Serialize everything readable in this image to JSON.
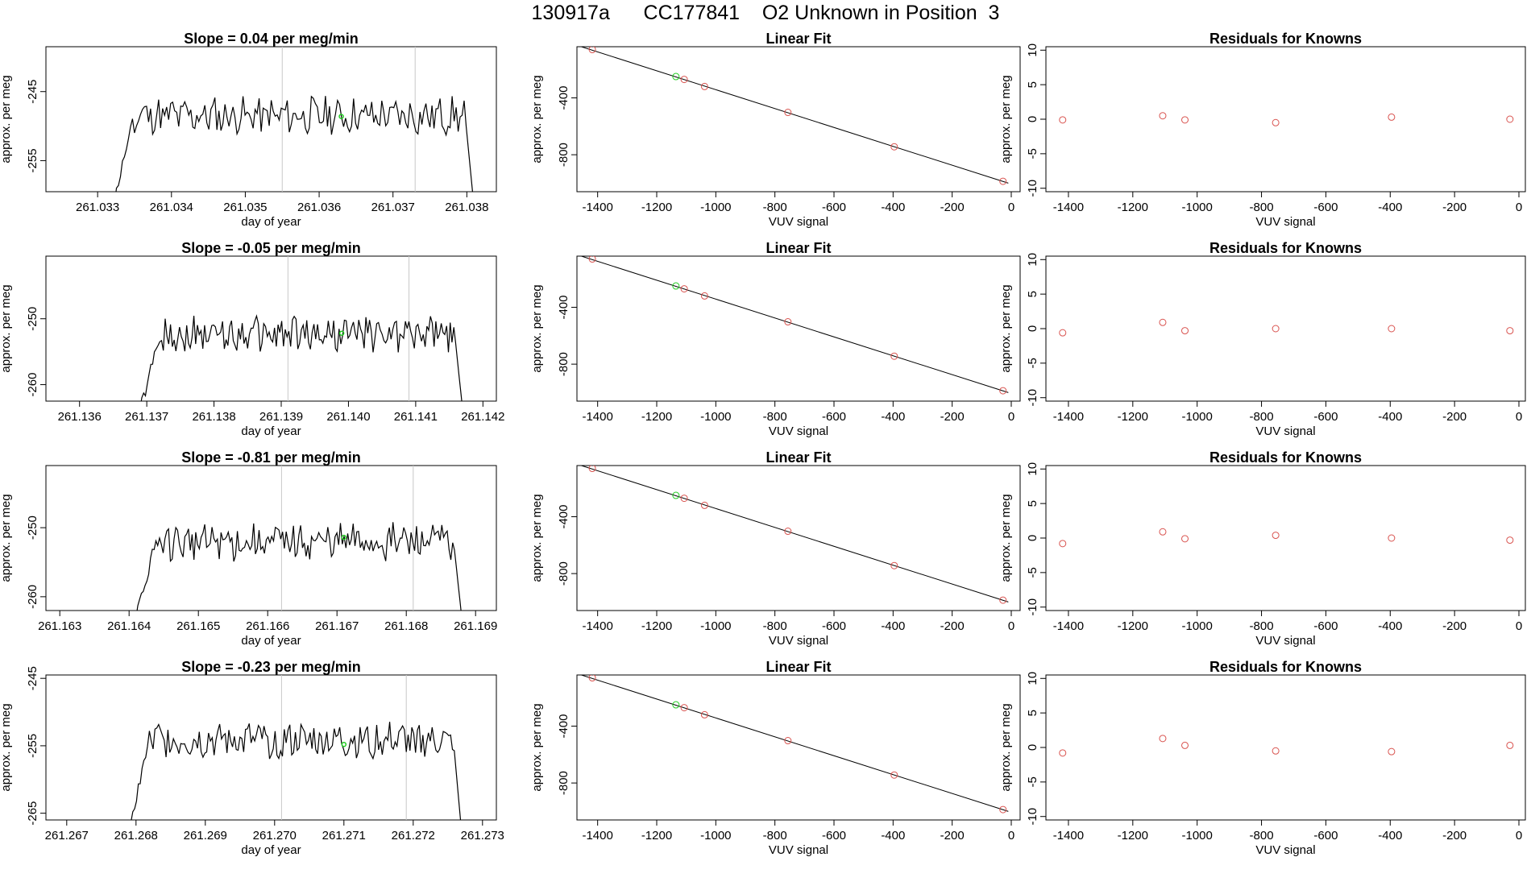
{
  "title": "130917a      CC177841    O2 Unknown in Position  3",
  "chart_data": [
    {
      "type": "line",
      "title": "Slope =  0.04  per meg/min",
      "xlabel": "day of year",
      "ylabel": "approx. per meg",
      "xlim": [
        261.0323,
        261.0384
      ],
      "ylim": [
        -259.5,
        -238.5
      ],
      "x_ticks": [
        "261.033",
        "261.034",
        "261.035",
        "261.036",
        "261.037",
        "261.038"
      ],
      "y_ticks": [
        "-245",
        "-255"
      ],
      "series": [
        {
          "x_start": 261.0332,
          "x_end": 261.0381,
          "mean": -248.5,
          "amplitude": 2.4,
          "rise_start": -262,
          "fall_end": -262
        }
      ],
      "vertical_lines": [
        261.0355,
        261.0373
      ],
      "highlight_point": [
        261.0363,
        -248.6
      ],
      "grid": false
    },
    {
      "type": "scatter",
      "title": "Linear Fit",
      "xlabel": "VUV signal",
      "ylabel": "approx. per meg",
      "xlim": [
        -1470,
        30
      ],
      "ylim": [
        -1060,
        -40
      ],
      "x_ticks": [
        "-1400",
        "-1200",
        "-1000",
        "-800",
        "-600",
        "-400",
        "-200",
        "0"
      ],
      "y_ticks": [
        "-400",
        "-800"
      ],
      "known_points": [
        [
          -1418,
          -60
        ],
        [
          -1107,
          -270
        ],
        [
          -1038,
          -320
        ],
        [
          -756,
          -502
        ],
        [
          -396,
          -744
        ],
        [
          -28,
          -987
        ]
      ],
      "unknown_point": [
        -1135,
        -250
      ],
      "fit_line": [
        [
          -1455,
          -40
        ],
        [
          -10,
          -1000
        ]
      ]
    },
    {
      "type": "scatter",
      "title": "Residuals for Knowns",
      "xlabel": "VUV signal",
      "ylabel": "approx. per meg",
      "xlim": [
        -1470,
        20
      ],
      "ylim": [
        -10.5,
        10.5
      ],
      "x_ticks": [
        "-1400",
        "-1200",
        "-1000",
        "-800",
        "-600",
        "-400",
        "-200",
        "0"
      ],
      "y_ticks": [
        "10",
        "5",
        "0",
        "-5",
        "-10"
      ],
      "points": [
        [
          -1418,
          -0.1
        ],
        [
          -1107,
          0.5
        ],
        [
          -1038,
          -0.1
        ],
        [
          -756,
          -0.5
        ],
        [
          -396,
          0.3
        ],
        [
          -28,
          0.0
        ]
      ]
    },
    {
      "type": "line",
      "title": "Slope =  -0.05  per meg/min",
      "xlabel": "day of year",
      "ylabel": "approx. per meg",
      "xlim": [
        261.1355,
        261.1422
      ],
      "ylim": [
        -262.5,
        -240.5
      ],
      "x_ticks": [
        "261.136",
        "261.137",
        "261.138",
        "261.139",
        "261.140",
        "261.141",
        "261.142"
      ],
      "y_ticks": [
        "-250",
        "-260"
      ],
      "series": [
        {
          "x_start": 261.1369,
          "x_end": 261.1417,
          "mean": -252.3,
          "amplitude": 2.4,
          "rise_start": -264,
          "fall_end": -264
        }
      ],
      "vertical_lines": [
        261.1391,
        261.1409
      ],
      "highlight_point": [
        261.1399,
        -252.2
      ],
      "grid": false
    },
    {
      "type": "scatter",
      "title": "Linear Fit",
      "xlabel": "VUV signal",
      "ylabel": "approx. per meg",
      "xlim": [
        -1470,
        30
      ],
      "ylim": [
        -1060,
        -40
      ],
      "x_ticks": [
        "-1400",
        "-1200",
        "-1000",
        "-800",
        "-600",
        "-400",
        "-200",
        "0"
      ],
      "y_ticks": [
        "-400",
        "-800"
      ],
      "known_points": [
        [
          -1418,
          -60
        ],
        [
          -1107,
          -270
        ],
        [
          -1038,
          -320
        ],
        [
          -756,
          -502
        ],
        [
          -396,
          -744
        ],
        [
          -28,
          -987
        ]
      ],
      "unknown_point": [
        -1135,
        -250
      ],
      "fit_line": [
        [
          -1455,
          -40
        ],
        [
          -10,
          -1000
        ]
      ]
    },
    {
      "type": "scatter",
      "title": "Residuals for Knowns",
      "xlabel": "VUV signal",
      "ylabel": "approx. per meg",
      "xlim": [
        -1470,
        20
      ],
      "ylim": [
        -10.5,
        10.5
      ],
      "x_ticks": [
        "-1400",
        "-1200",
        "-1000",
        "-800",
        "-600",
        "-400",
        "-200",
        "0"
      ],
      "y_ticks": [
        "10",
        "5",
        "0",
        "-5",
        "-10"
      ],
      "points": [
        [
          -1418,
          -0.6
        ],
        [
          -1107,
          0.9
        ],
        [
          -1038,
          -0.3
        ],
        [
          -756,
          0.0
        ],
        [
          -396,
          0.0
        ],
        [
          -28,
          -0.3
        ]
      ]
    },
    {
      "type": "line",
      "title": "Slope =  -0.81  per meg/min",
      "xlabel": "day of year",
      "ylabel": "approx. per meg",
      "xlim": [
        261.1628,
        261.1693
      ],
      "ylim": [
        -262.0,
        -241.0
      ],
      "x_ticks": [
        "261.163",
        "261.164",
        "261.165",
        "261.166",
        "261.167",
        "261.168",
        "261.169"
      ],
      "y_ticks": [
        "-250",
        "-260"
      ],
      "series": [
        {
          "x_start": 261.1641,
          "x_end": 261.1688,
          "mean": -252.0,
          "amplitude": 2.4,
          "rise_start": -263,
          "fall_end": -263
        }
      ],
      "vertical_lines": [
        261.1662,
        261.1681
      ],
      "highlight_point": [
        261.1671,
        -251.4
      ],
      "grid": false
    },
    {
      "type": "scatter",
      "title": "Linear Fit",
      "xlabel": "VUV signal",
      "ylabel": "approx. per meg",
      "xlim": [
        -1470,
        30
      ],
      "ylim": [
        -1060,
        -40
      ],
      "x_ticks": [
        "-1400",
        "-1200",
        "-1000",
        "-800",
        "-600",
        "-400",
        "-200",
        "0"
      ],
      "y_ticks": [
        "-400",
        "-800"
      ],
      "known_points": [
        [
          -1418,
          -60
        ],
        [
          -1107,
          -270
        ],
        [
          -1038,
          -320
        ],
        [
          -756,
          -502
        ],
        [
          -396,
          -744
        ],
        [
          -28,
          -987
        ]
      ],
      "unknown_point": [
        -1135,
        -250
      ],
      "fit_line": [
        [
          -1455,
          -40
        ],
        [
          -10,
          -1000
        ]
      ]
    },
    {
      "type": "scatter",
      "title": "Residuals for Knowns",
      "xlabel": "VUV signal",
      "ylabel": "approx. per meg",
      "xlim": [
        -1470,
        20
      ],
      "ylim": [
        -10.5,
        10.5
      ],
      "x_ticks": [
        "-1400",
        "-1200",
        "-1000",
        "-800",
        "-600",
        "-400",
        "-200",
        "0"
      ],
      "y_ticks": [
        "10",
        "5",
        "0",
        "-5",
        "-10"
      ],
      "points": [
        [
          -1418,
          -0.8
        ],
        [
          -1107,
          0.9
        ],
        [
          -1038,
          -0.1
        ],
        [
          -756,
          0.4
        ],
        [
          -396,
          0.0
        ],
        [
          -28,
          -0.3
        ]
      ]
    },
    {
      "type": "line",
      "title": "Slope =  -0.23  per meg/min",
      "xlabel": "day of year",
      "ylabel": "approx. per meg",
      "xlim": [
        261.2667,
        261.2732
      ],
      "ylim": [
        -266.0,
        -244.5
      ],
      "x_ticks": [
        "261.267",
        "261.268",
        "261.269",
        "261.270",
        "261.271",
        "261.272",
        "261.273"
      ],
      "y_ticks": [
        "-245",
        "-255",
        "-265"
      ],
      "series": [
        {
          "x_start": 261.2679,
          "x_end": 261.2727,
          "mean": -254.2,
          "amplitude": 2.4,
          "rise_start": -268,
          "fall_end": -268
        }
      ],
      "vertical_lines": [
        261.2701,
        261.2719
      ],
      "highlight_point": [
        261.271,
        -254.8
      ],
      "grid": false
    },
    {
      "type": "scatter",
      "title": "Linear Fit",
      "xlabel": "VUV signal",
      "ylabel": "approx. per meg",
      "xlim": [
        -1470,
        30
      ],
      "ylim": [
        -1060,
        -40
      ],
      "x_ticks": [
        "-1400",
        "-1200",
        "-1000",
        "-800",
        "-600",
        "-400",
        "-200",
        "0"
      ],
      "y_ticks": [
        "-400",
        "-800"
      ],
      "known_points": [
        [
          -1418,
          -60
        ],
        [
          -1107,
          -270
        ],
        [
          -1038,
          -320
        ],
        [
          -756,
          -502
        ],
        [
          -396,
          -744
        ],
        [
          -28,
          -987
        ]
      ],
      "unknown_point": [
        -1135,
        -250
      ],
      "fit_line": [
        [
          -1455,
          -40
        ],
        [
          -10,
          -1000
        ]
      ]
    },
    {
      "type": "scatter",
      "title": "Residuals for Knowns",
      "xlabel": "VUV signal",
      "ylabel": "approx. per meg",
      "xlim": [
        -1470,
        20
      ],
      "ylim": [
        -10.5,
        10.5
      ],
      "x_ticks": [
        "-1400",
        "-1200",
        "-1000",
        "-800",
        "-600",
        "-400",
        "-200",
        "0"
      ],
      "y_ticks": [
        "10",
        "5",
        "0",
        "-5",
        "-10"
      ],
      "points": [
        [
          -1418,
          -0.8
        ],
        [
          -1107,
          1.3
        ],
        [
          -1038,
          0.3
        ],
        [
          -756,
          -0.5
        ],
        [
          -396,
          -0.6
        ],
        [
          -28,
          0.3
        ]
      ]
    }
  ],
  "colors": {
    "axes": "#000000",
    "trace": "#000000",
    "known_point": "#d9534f",
    "unknown_point": "#22cc22",
    "marker_line": "#c8c8c8"
  }
}
